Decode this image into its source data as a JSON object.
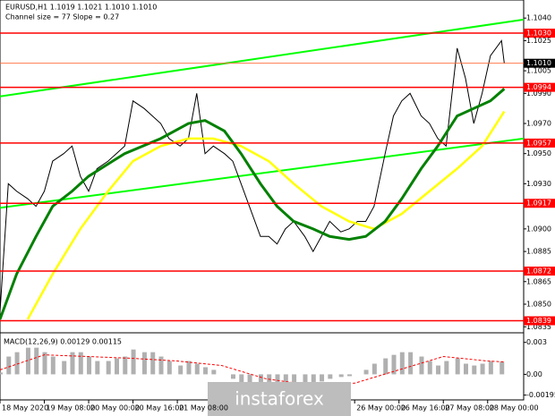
{
  "header": {
    "symbol": "EURUSD,H1  1.1019 1.1021 1.1010 1.1010",
    "indicator": "Channel size = 77 Slope = 0.27"
  },
  "watermark": "instaforex",
  "chart_data": [
    {
      "type": "line",
      "xlim": [
        0,
        189
      ],
      "ylim": [
        1.0831,
        1.1052
      ],
      "yticks": [
        {
          "value": 1.104,
          "label": "1.1040"
        },
        {
          "value": 1.1025,
          "label": "1.1025"
        },
        {
          "value": 1.1005,
          "label": "1.1005"
        },
        {
          "value": 1.099,
          "label": "1.0990"
        },
        {
          "value": 1.097,
          "label": "1.0970"
        },
        {
          "value": 1.095,
          "label": "1.0950"
        },
        {
          "value": 1.093,
          "label": "1.0930"
        },
        {
          "value": 1.09,
          "label": "1.0900"
        },
        {
          "value": 1.0885,
          "label": "1.0885"
        },
        {
          "value": 1.0865,
          "label": "1.0865"
        },
        {
          "value": 1.085,
          "label": "1.0850"
        },
        {
          "value": 1.0835,
          "label": "1.0835"
        }
      ],
      "xticks": [
        {
          "value": 0,
          "label": "18 May 2020"
        },
        {
          "value": 16,
          "label": "19 May 08:00"
        },
        {
          "value": 32,
          "label": "20 May 00:00"
        },
        {
          "value": 48,
          "label": "20 May 16:00"
        },
        {
          "value": 64,
          "label": "21 May 08:00"
        },
        {
          "value": 128,
          "label": "26 May 00:00"
        },
        {
          "value": 144,
          "label": "26 May 16:00"
        },
        {
          "value": 160,
          "label": "27 May 08:00"
        },
        {
          "value": 176,
          "label": "28 May 00:00"
        }
      ],
      "levels": [
        1.103,
        1.0994,
        1.0957,
        1.0917,
        1.0872,
        1.0839
      ],
      "level_labels": [
        "1.1030",
        "1.0994",
        "1.0957",
        "1.0917",
        "1.0872",
        "1.0839"
      ],
      "level_color": "#ff0000",
      "current_price": 1.101,
      "current_price_label": "1.1010",
      "series": [
        {
          "color": "#00ff00",
          "width": 2,
          "x": [
            0,
            189
          ],
          "values": [
            1.0988,
            1.1039
          ]
        },
        {
          "color": "#00ff00",
          "width": 2,
          "x": [
            0,
            189
          ],
          "values": [
            1.0914,
            1.096
          ]
        },
        {
          "color": "#000000",
          "width": 1,
          "x": [
            0,
            3,
            6,
            10,
            13,
            16,
            19,
            23,
            26,
            29,
            32,
            35,
            39,
            42,
            45,
            48,
            52,
            55,
            58,
            61,
            65,
            68,
            71,
            74,
            77,
            81,
            84,
            87,
            90,
            94,
            97,
            100,
            103,
            106,
            110,
            113,
            116,
            119,
            123,
            126,
            129,
            132,
            135,
            139,
            142,
            145,
            148,
            152,
            155,
            158,
            161,
            165,
            168,
            171,
            174,
            177,
            181,
            182
          ],
          "values": [
            1.0845,
            1.093,
            1.0925,
            1.092,
            1.0915,
            1.0925,
            1.0945,
            1.095,
            1.0955,
            1.0935,
            1.0925,
            1.094,
            1.0945,
            1.095,
            1.0955,
            1.0985,
            1.098,
            1.0975,
            1.097,
            1.096,
            1.0955,
            1.096,
            1.099,
            1.095,
            1.0955,
            1.095,
            1.0945,
            1.093,
            1.0915,
            1.0895,
            1.0895,
            1.089,
            1.09,
            1.0905,
            1.0895,
            1.0885,
            1.0895,
            1.0905,
            1.0898,
            1.09,
            1.0905,
            1.0905,
            1.0915,
            1.095,
            1.0975,
            1.0985,
            1.099,
            1.0975,
            1.097,
            1.096,
            1.0955,
            1.102,
            1.1,
            1.097,
            1.099,
            1.1015,
            1.1025,
            1.101
          ]
        },
        {
          "color": "#ffff00",
          "width": 2.5,
          "x": [
            10,
            19,
            29,
            39,
            48,
            58,
            68,
            77,
            87,
            97,
            106,
            116,
            126,
            135,
            145,
            155,
            165,
            174,
            182
          ],
          "values": [
            1.084,
            1.087,
            1.09,
            1.0925,
            1.0945,
            1.0955,
            1.096,
            1.096,
            1.0955,
            1.0945,
            1.093,
            1.0915,
            1.0905,
            1.09,
            1.091,
            1.0925,
            1.094,
            1.0955,
            1.0978
          ]
        },
        {
          "color": "#008000",
          "width": 3,
          "x": [
            0,
            6,
            13,
            19,
            26,
            32,
            45,
            58,
            68,
            74,
            81,
            87,
            94,
            100,
            106,
            113,
            119,
            126,
            132,
            139,
            145,
            152,
            158,
            165,
            171,
            177,
            182
          ],
          "values": [
            1.084,
            1.087,
            1.0895,
            1.0915,
            1.0925,
            1.0935,
            1.095,
            1.096,
            1.097,
            1.0972,
            1.0965,
            1.095,
            1.093,
            1.0915,
            1.0905,
            1.09,
            1.0895,
            1.0893,
            1.0895,
            1.0905,
            1.092,
            1.094,
            1.0955,
            1.0975,
            1.098,
            1.0985,
            1.0993
          ]
        }
      ]
    },
    {
      "type": "bar",
      "title": "MACD(12,26,9) 0.00129 0.00115",
      "xlim": [
        0,
        189
      ],
      "ylim": [
        -0.0024,
        0.0039
      ],
      "yticks": [
        0.003,
        {
          "value": 0,
          "label": "0.00"
        },
        -0.00195
      ],
      "color": "#b0b0b0",
      "signal_color": "#ff0000",
      "x": [
        0,
        3,
        6,
        10,
        13,
        16,
        19,
        23,
        26,
        29,
        32,
        35,
        39,
        42,
        45,
        48,
        52,
        55,
        58,
        61,
        65,
        68,
        71,
        74,
        77,
        81,
        84,
        87,
        90,
        94,
        97,
        100,
        103,
        106,
        110,
        113,
        116,
        119,
        123,
        126,
        129,
        132,
        135,
        139,
        142,
        145,
        148,
        152,
        155,
        158,
        161,
        165,
        168,
        171,
        174,
        177,
        181
      ],
      "values": [
        0.00017,
        0.00167,
        0.00208,
        0.0025,
        0.0025,
        0.00208,
        0.00167,
        0.00125,
        0.00208,
        0.00208,
        0.00167,
        0.00125,
        0.00125,
        0.0015,
        0.00167,
        0.00233,
        0.00208,
        0.00208,
        0.00167,
        0.00125,
        0.00083,
        0.00125,
        0.001,
        0.00067,
        0.00042,
        0,
        -0.00042,
        -0.00083,
        -0.001,
        -0.00125,
        -0.00125,
        -0.00117,
        -0.001,
        -0.001,
        -0.00083,
        -0.00083,
        -0.00067,
        -0.00042,
        -0.00025,
        -0.00017,
        0,
        0.00042,
        0.001,
        0.0015,
        0.00183,
        0.00208,
        0.00208,
        0.00167,
        0.00125,
        0.00083,
        0.00125,
        0.0015,
        0.001,
        0.00083,
        0.001,
        0.00125,
        0.00117
      ],
      "signal_x": [
        0,
        16,
        32,
        48,
        64,
        80,
        96,
        112,
        128,
        144,
        160,
        176,
        182
      ],
      "signal": [
        0.00042,
        0.00183,
        0.00167,
        0.0015,
        0.00125,
        0.00083,
        -0.00042,
        -0.001,
        -0.00083,
        0.00042,
        0.00167,
        0.00125,
        0.00117
      ]
    }
  ]
}
